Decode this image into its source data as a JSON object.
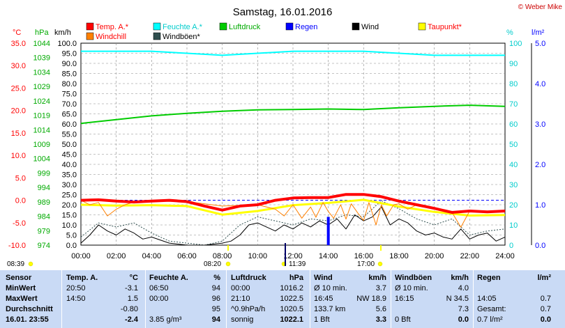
{
  "title": "Samstag, 16.01.2016",
  "credit": "© Weber Mike",
  "colors": {
    "temp": "#ff0000",
    "humidity": "#00ffff",
    "pressure": "#00cc00",
    "rain": "#0000ff",
    "wind": "#000000",
    "dewpoint": "#ffff00",
    "windchill": "#ff8000",
    "gusts": "#2f4f4f",
    "background": "#ffffff",
    "stats_bg": "#c9daf5"
  },
  "legend": [
    {
      "label": "Temp. A.*",
      "color": "#ff0000",
      "text_color": "#ff0000"
    },
    {
      "label": "Feuchte A.*",
      "color": "#00ffff",
      "text_color": "#00cccc"
    },
    {
      "label": "Luftdruck",
      "color": "#00cc00",
      "text_color": "#00aa00"
    },
    {
      "label": "Regen",
      "color": "#0000ff",
      "text_color": "#0000ff"
    },
    {
      "label": "Wind",
      "color": "#000000",
      "text_color": "#000000"
    },
    {
      "label": "Taupunkt*",
      "color": "#ffff00",
      "text_color": "#ff0000"
    },
    {
      "label": "Windchill",
      "color": "#ff8000",
      "text_color": "#ff0000"
    },
    {
      "label": "Windböen*",
      "color": "#2f4f4f",
      "text_color": "#000000"
    }
  ],
  "axis_units": {
    "temp": "°C",
    "pressure": "hPa",
    "wind": "km/h",
    "humidity": "%",
    "rain": "l/m²"
  },
  "time_markers": [
    {
      "label": "08:39",
      "pos": "left"
    },
    {
      "label": "08:20"
    },
    {
      "label": "11:39"
    },
    {
      "label": "17:00"
    }
  ],
  "chart_data": {
    "type": "line",
    "title": "Samstag, 16.01.2016",
    "x_ticks": [
      "00:00",
      "02:00",
      "04:00",
      "06:00",
      "08:00",
      "10:00",
      "12:00",
      "14:00",
      "16:00",
      "18:00",
      "20:00",
      "22:00",
      "24:00"
    ],
    "xlim": [
      0,
      24
    ],
    "grid": true,
    "axes": {
      "temp": {
        "label": "°C",
        "ylim": [
          -10,
          35
        ],
        "ticks": [
          "35.0",
          "30.0",
          "25.0",
          "20.0",
          "15.0",
          "10.0",
          "5.0",
          "0.0",
          "-5.0",
          "-10.0"
        ]
      },
      "pressure": {
        "label": "hPa",
        "ylim": [
          974,
          1044
        ],
        "ticks": [
          "1044",
          "1039",
          "1034",
          "1029",
          "1024",
          "1019",
          "1014",
          "1009",
          "1004",
          "999",
          "994",
          "989",
          "984",
          "979",
          "974"
        ]
      },
      "wind": {
        "label": "km/h",
        "ylim": [
          0,
          100
        ],
        "ticks": [
          "100.0",
          "95.0",
          "90.0",
          "85.0",
          "80.0",
          "75.0",
          "70.0",
          "65.0",
          "60.0",
          "55.0",
          "50.0",
          "45.0",
          "40.0",
          "35.0",
          "30.0",
          "25.0",
          "20.0",
          "15.0",
          "10.0",
          "5.0",
          "0.0"
        ]
      },
      "humidity": {
        "label": "%",
        "ylim": [
          0,
          100
        ],
        "ticks": [
          "100",
          "90",
          "80",
          "70",
          "60",
          "50",
          "40",
          "30",
          "20",
          "10",
          "0"
        ]
      },
      "rain": {
        "label": "l/m²",
        "ylim": [
          0,
          5
        ],
        "ticks": [
          "5.0",
          "4.0",
          "3.0",
          "2.0",
          "1.0",
          "0.0"
        ]
      }
    },
    "series": [
      {
        "name": "Temp. A.*",
        "axis": "temp",
        "color": "#ff0000",
        "x": [
          0,
          1,
          2,
          3,
          4,
          5,
          6,
          7,
          8,
          9,
          10,
          11,
          12,
          13,
          14,
          15,
          16,
          17,
          18,
          19,
          20,
          21,
          22,
          23,
          24
        ],
        "y": [
          0.0,
          0.1,
          -0.2,
          -0.4,
          -0.2,
          0.0,
          -0.3,
          -1.3,
          -2.2,
          -1.3,
          -1.0,
          0.0,
          0.5,
          0.6,
          0.6,
          1.3,
          1.3,
          0.8,
          -0.2,
          -1.0,
          -1.8,
          -2.7,
          -2.4,
          -2.6,
          -2.4
        ]
      },
      {
        "name": "Taupunkt*",
        "axis": "temp",
        "color": "#ffff00",
        "x": [
          0,
          2,
          4,
          6,
          8,
          10,
          12,
          14,
          16,
          18,
          20,
          22,
          24
        ],
        "y": [
          -1.0,
          -1.2,
          -1.1,
          -1.3,
          -3.2,
          -2.4,
          -1.1,
          -0.6,
          0.1,
          -1.4,
          -2.6,
          -3.4,
          -3.3
        ]
      },
      {
        "name": "Windchill",
        "axis": "temp",
        "color": "#ff8000",
        "x": [
          0,
          0.5,
          1,
          1.5,
          2,
          2.5,
          3,
          4,
          6,
          8,
          10,
          11,
          11.5,
          12,
          12.5,
          13,
          13.3,
          13.7,
          14,
          14.3,
          14.7,
          15,
          15.3,
          15.7,
          16,
          16.3,
          16.7,
          17,
          17.3,
          17.7,
          18,
          18.5,
          19,
          20,
          21,
          21.5,
          22,
          23,
          24
        ],
        "y": [
          0.0,
          -1.0,
          -0.5,
          -3.5,
          -2.0,
          -1.0,
          -0.4,
          -0.2,
          -0.3,
          -1.3,
          -1.0,
          -2.0,
          -3.5,
          -1.0,
          -4.0,
          -1.5,
          -3.8,
          -0.5,
          -2.5,
          -4.0,
          -1.0,
          -4.2,
          -0.8,
          -3.0,
          -4.5,
          -0.5,
          -5.5,
          -1.0,
          -3.5,
          -1.0,
          -0.8,
          -2.0,
          -1.0,
          -1.8,
          -2.7,
          -6.0,
          -2.4,
          -2.6,
          -2.4
        ]
      },
      {
        "name": "Feuchte A.*",
        "axis": "humidity",
        "color": "#00ffff",
        "x": [
          0,
          2,
          4,
          6,
          8,
          10,
          12,
          14,
          16,
          18,
          20,
          22,
          24
        ],
        "y": [
          96,
          96,
          96,
          95,
          94,
          95,
          96,
          96,
          96,
          95,
          94,
          94,
          94
        ]
      },
      {
        "name": "Luftdruck",
        "axis": "pressure",
        "color": "#00cc00",
        "x": [
          0,
          2,
          4,
          6,
          8,
          10,
          12,
          14,
          16,
          18,
          20,
          22,
          24
        ],
        "y": [
          1016.2,
          1017.5,
          1018.8,
          1019.7,
          1020.4,
          1020.9,
          1021.0,
          1021.2,
          1021.0,
          1021.6,
          1022.1,
          1022.5,
          1022.1
        ]
      },
      {
        "name": "Wind",
        "axis": "wind",
        "color": "#000000",
        "x": [
          0,
          0.5,
          1,
          1.5,
          2,
          2.5,
          3,
          3.5,
          4,
          5,
          6,
          7,
          8,
          8.5,
          9,
          9.5,
          10,
          10.5,
          11,
          11.5,
          12,
          12.5,
          13,
          13.5,
          14,
          14.5,
          15,
          15.5,
          16,
          16.5,
          17,
          17.5,
          18,
          18.5,
          19,
          19.5,
          20,
          20.5,
          21,
          21.5,
          22,
          22.5,
          23,
          23.5,
          24
        ],
        "y": [
          1,
          5,
          10,
          7,
          5,
          8,
          6,
          3,
          4,
          1,
          0,
          0,
          1,
          2,
          5,
          10,
          11,
          9,
          7,
          10,
          8,
          11,
          9,
          12,
          10,
          13,
          8,
          15,
          12,
          14,
          19,
          10,
          13,
          11,
          7,
          5,
          6,
          4,
          3,
          8,
          3,
          5,
          6,
          2,
          4
        ]
      },
      {
        "name": "Windböen*",
        "axis": "wind",
        "color": "#2f4f4f",
        "x": [
          0,
          1,
          2,
          3,
          4,
          5,
          6,
          7,
          8,
          9,
          10,
          11,
          12,
          13,
          14,
          15,
          16,
          17,
          18,
          19,
          20,
          21,
          22,
          23,
          24
        ],
        "y": [
          4,
          11,
          9,
          11,
          6,
          2,
          1,
          0,
          2,
          10,
          14,
          12,
          10,
          13,
          12,
          15,
          14,
          22,
          18,
          13,
          10,
          13,
          5,
          7,
          8
        ]
      },
      {
        "name": "Regen",
        "axis": "rain",
        "color": "#0000ff",
        "x": [
          14.0
        ],
        "y": [
          0.7
        ]
      }
    ]
  },
  "stats": {
    "headers": {
      "sensor": "Sensor",
      "temp": "Temp. A.",
      "temp_unit": "°C",
      "hum": "Feuchte A.",
      "hum_unit": "%",
      "press": "Luftdruck",
      "press_unit": "hPa",
      "wind": "Wind",
      "wind_unit": "km/h",
      "gust": "Windböen",
      "gust_unit": "km/h",
      "rain": "Regen",
      "rain_unit": "l/m²"
    },
    "rows": [
      {
        "label": "MinWert",
        "temp_t": "20:50",
        "temp_v": "-3.1",
        "hum_t": "06:50",
        "hum_v": "94",
        "press_t": "00:00",
        "press_v": "1016.2",
        "wind_t": "Ø 10 min.",
        "wind_v": "3.7",
        "gust_t": "Ø 10 min.",
        "gust_v": "4.0",
        "rain_t": "",
        "rain_v": ""
      },
      {
        "label": "MaxWert",
        "temp_t": "14:50",
        "temp_v": "1.5",
        "hum_t": "00:00",
        "hum_v": "96",
        "press_t": "21:10",
        "press_v": "1022.5",
        "wind_t": "16:45",
        "wind_v": "NW 18.9",
        "gust_t": "16:15",
        "gust_v": "N 34.5",
        "rain_t": "14:05",
        "rain_v": "0.7"
      },
      {
        "label": "Durchschnitt",
        "temp_t": "",
        "temp_v": "-0.80",
        "hum_t": "",
        "hum_v": "95",
        "press_t": "^0.9hPa/h",
        "press_v": "1020.5",
        "wind_t": "133.7 km",
        "wind_v": "5.6",
        "gust_t": "",
        "gust_v": "7.3",
        "rain_t": "Gesamt:",
        "rain_v": "0.7"
      },
      {
        "label": "16.01. 23:55",
        "temp_t": "",
        "temp_v": "-2.4",
        "hum_t": "3.85 g/m³",
        "hum_v": "94",
        "press_t": "sonnig",
        "press_v": "1022.1",
        "wind_t": "1 Bft",
        "wind_v": "3.3",
        "gust_t": "0 Bft",
        "gust_v": "0.0",
        "rain_t": "0.7 l/m²",
        "rain_v": "0.0"
      }
    ]
  }
}
